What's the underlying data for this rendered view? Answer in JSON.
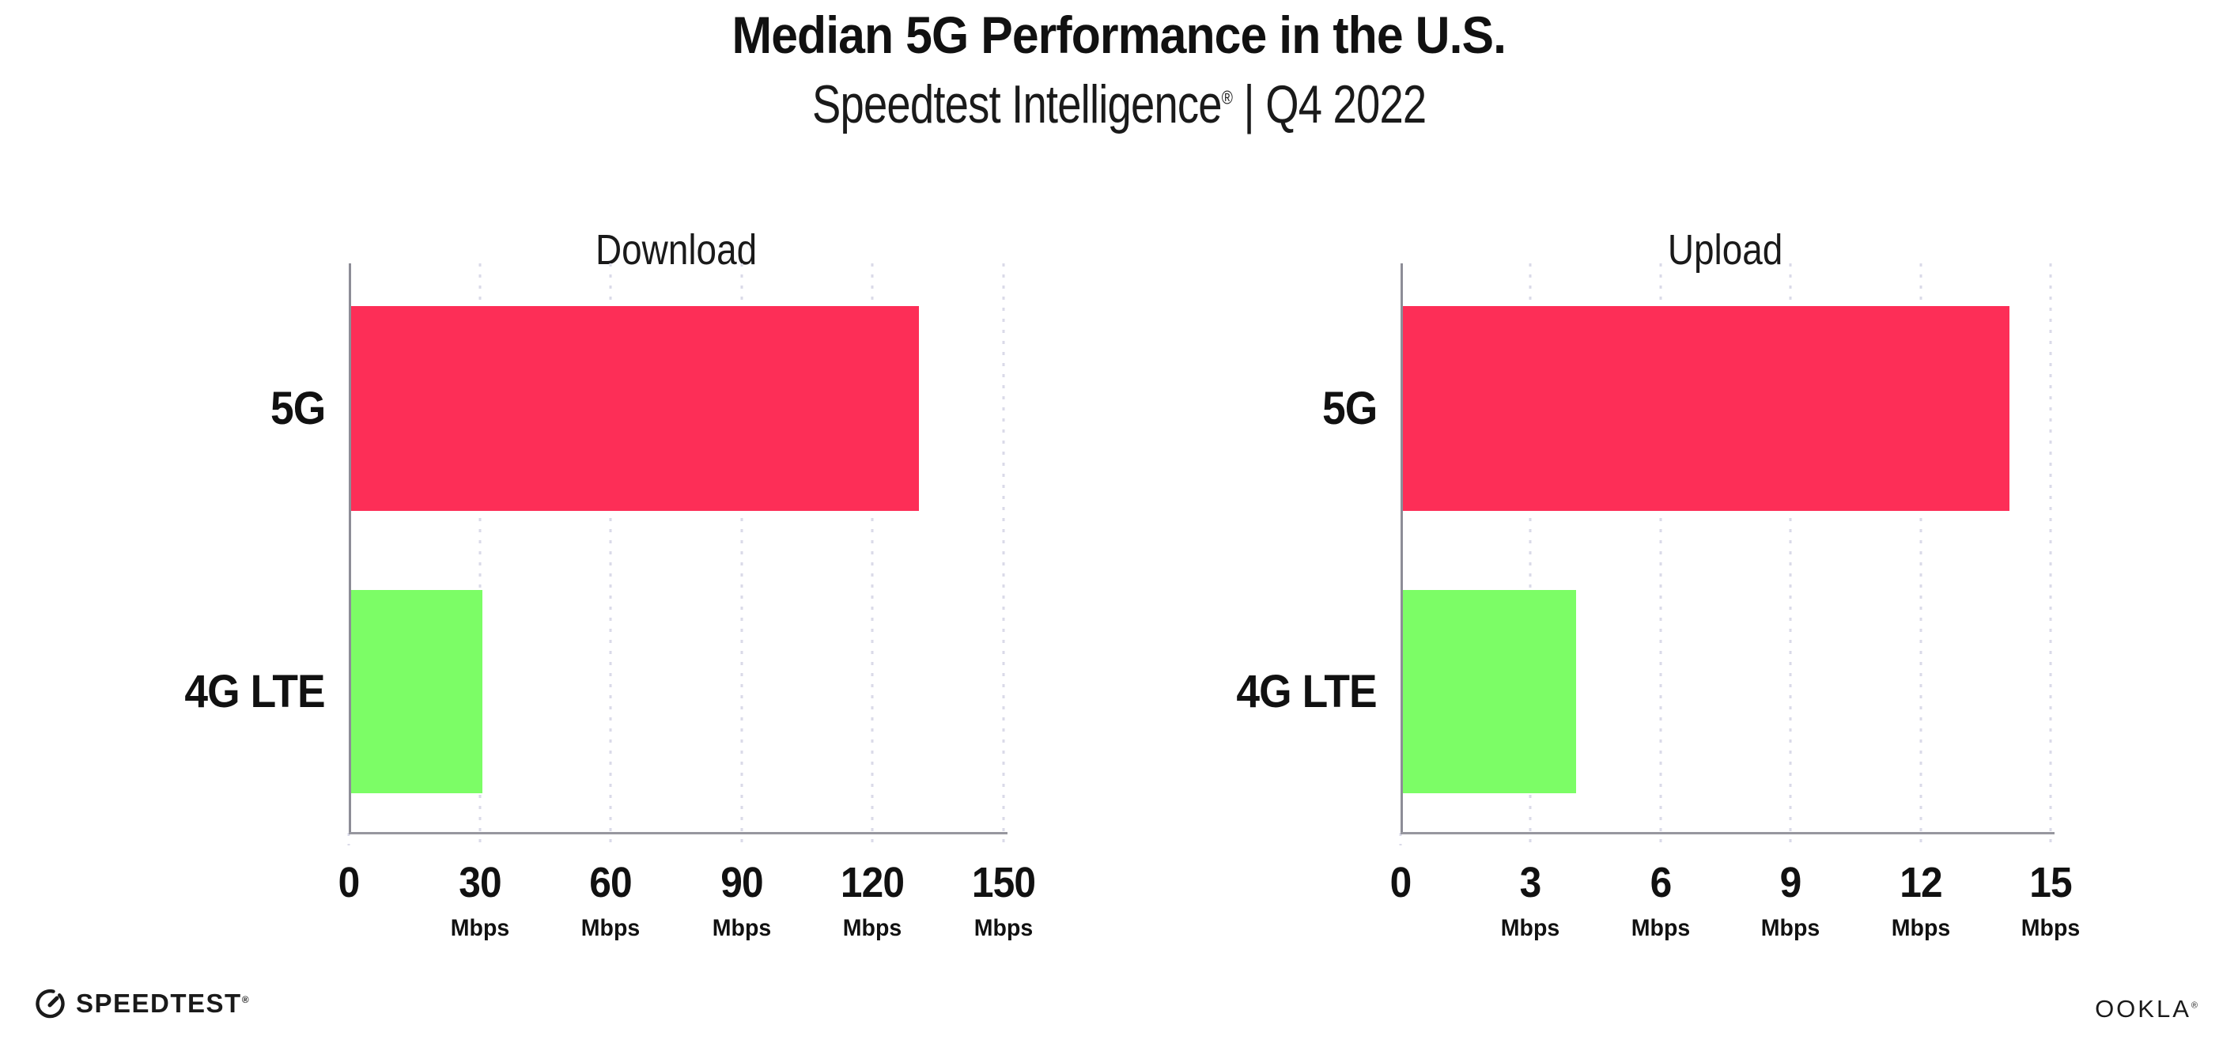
{
  "header": {
    "title": "Median 5G Performance in the U.S.",
    "subtitle_brand": "Speedtest Intelligence",
    "subtitle_reg": "®",
    "subtitle_sep": "|",
    "subtitle_period": "Q4 2022"
  },
  "colors": {
    "bar_5g": "#FD2E57",
    "bar_4g_lte": "#7CFD66",
    "gridline": "#DADAE8",
    "axis": "#8D8D97",
    "text": "#111111"
  },
  "chart_data": [
    {
      "type": "bar",
      "orientation": "horizontal",
      "title": "Download",
      "categories": [
        "5G",
        "4G LTE"
      ],
      "values": [
        130,
        30
      ],
      "unit": "Mbps",
      "xlim": [
        0,
        150
      ],
      "xticks": [
        0,
        30,
        60,
        90,
        120,
        150
      ],
      "ticks": [
        {
          "label": "0",
          "unit": ""
        },
        {
          "label": "30",
          "unit": "Mbps"
        },
        {
          "label": "60",
          "unit": "Mbps"
        },
        {
          "label": "90",
          "unit": "Mbps"
        },
        {
          "label": "120",
          "unit": "Mbps"
        },
        {
          "label": "150",
          "unit": "Mbps"
        }
      ],
      "bar_colors": [
        "#FD2E57",
        "#7CFD66"
      ],
      "grid": "dotted-vertical",
      "legend": "none"
    },
    {
      "type": "bar",
      "orientation": "horizontal",
      "title": "Upload",
      "categories": [
        "5G",
        "4G LTE"
      ],
      "values": [
        14,
        4
      ],
      "unit": "Mbps",
      "xlim": [
        0,
        15
      ],
      "xticks": [
        0,
        3,
        6,
        9,
        12,
        15
      ],
      "ticks": [
        {
          "label": "0",
          "unit": ""
        },
        {
          "label": "3",
          "unit": "Mbps"
        },
        {
          "label": "6",
          "unit": "Mbps"
        },
        {
          "label": "9",
          "unit": "Mbps"
        },
        {
          "label": "12",
          "unit": "Mbps"
        },
        {
          "label": "15",
          "unit": "Mbps"
        }
      ],
      "bar_colors": [
        "#FD2E57",
        "#7CFD66"
      ],
      "grid": "dotted-vertical",
      "legend": "none"
    }
  ],
  "footer": {
    "speedtest_logo": "SPEEDTEST",
    "speedtest_mark": "®",
    "ookla_logo": "OOKLA",
    "ookla_mark": "®"
  }
}
